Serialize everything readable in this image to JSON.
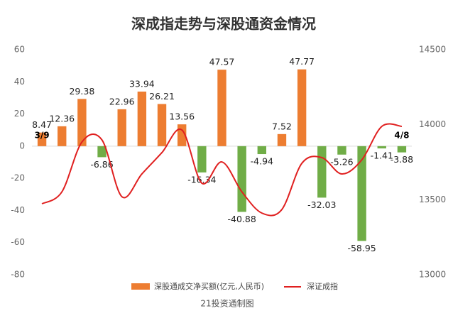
{
  "chart_data": {
    "type": "bar-line",
    "title": "深成指走势与深股通资金情况",
    "categories": [
      "3/9",
      null,
      null,
      null,
      null,
      null,
      null,
      null,
      null,
      null,
      null,
      null,
      null,
      null,
      null,
      null,
      null,
      null,
      "4/8"
    ],
    "series": [
      {
        "name": "深股通成交净买额(亿元,人民币)",
        "type": "bar",
        "color": "#ed7d31",
        "negative_color": "#70ad47",
        "values": [
          8.47,
          12.36,
          29.38,
          -6.86,
          22.96,
          33.94,
          26.21,
          13.56,
          -16.34,
          47.57,
          -40.88,
          -4.94,
          7.52,
          47.77,
          -32.03,
          -5.26,
          -58.95,
          -1.41,
          -3.88
        ]
      },
      {
        "name": "深证成指",
        "type": "line",
        "axis": "y2",
        "color": "#e02020",
        "values": [
          13473,
          13553,
          13885,
          13899,
          13520,
          13672,
          13814,
          13965,
          13610,
          13752,
          13553,
          13411,
          13435,
          13743,
          13781,
          13672,
          13766,
          13989,
          13989
        ]
      }
    ],
    "ylim": [
      -80,
      60
    ],
    "yticks": [
      -80,
      -60,
      -40,
      -20,
      0,
      20,
      40,
      60
    ],
    "y2lim": [
      13000,
      14500
    ],
    "y2ticks": [
      13000,
      13500,
      14000,
      14500
    ],
    "legend": "bottom",
    "footer": "21投资通制图"
  }
}
